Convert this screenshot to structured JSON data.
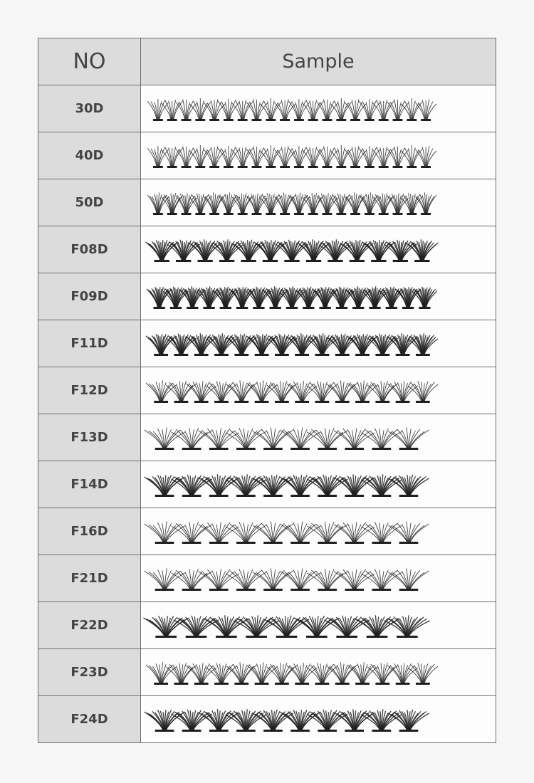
{
  "header": {
    "no_label": "NO",
    "sample_label": "Sample"
  },
  "rows": [
    {
      "code": "30D",
      "clusters": 20,
      "style": "thin"
    },
    {
      "code": "40D",
      "clusters": 20,
      "style": "thin"
    },
    {
      "code": "50D",
      "clusters": 20,
      "style": "medium"
    },
    {
      "code": "F08D",
      "clusters": 13,
      "style": "dense"
    },
    {
      "code": "F09D",
      "clusters": 17,
      "style": "dense"
    },
    {
      "code": "F11D",
      "clusters": 14,
      "style": "dense"
    },
    {
      "code": "F12D",
      "clusters": 14,
      "style": "medium"
    },
    {
      "code": "F13D",
      "clusters": 10,
      "style": "medium"
    },
    {
      "code": "F14D",
      "clusters": 10,
      "style": "dense"
    },
    {
      "code": "F16D",
      "clusters": 10,
      "style": "medium"
    },
    {
      "code": "F21D",
      "clusters": 10,
      "style": "medium"
    },
    {
      "code": "F22D",
      "clusters": 9,
      "style": "dense"
    },
    {
      "code": "F23D",
      "clusters": 14,
      "style": "medium"
    },
    {
      "code": "F24D",
      "clusters": 10,
      "style": "dense"
    }
  ],
  "colors": {
    "header_bg": "#dcdcdc",
    "border": "#6e6e6e",
    "lash": "#1e1e1e"
  }
}
